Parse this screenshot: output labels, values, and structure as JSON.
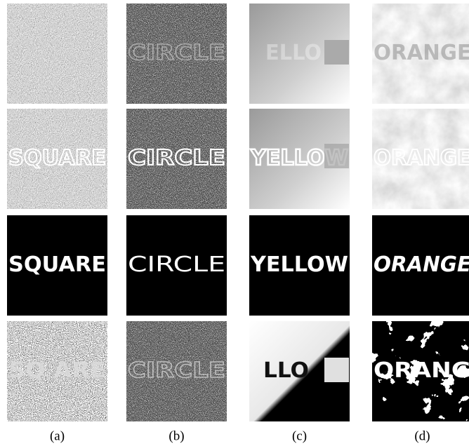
{
  "captions": [
    "(a)",
    "(b)",
    "(c)",
    "(d)"
  ],
  "rows": [
    {
      "cells": [
        null,
        "CIRCLE",
        "ELLO",
        "ORANGE"
      ]
    },
    {
      "cells": [
        "SQUARE",
        "CIRCLE",
        "YELLOW",
        "ORANGE"
      ]
    },
    {
      "cells": [
        "SQUARE",
        "CIRCLE",
        "YELLOW",
        "ORANGE"
      ]
    },
    {
      "cells": [
        "SQ ARE",
        "CIRCLE",
        "LLO",
        "ORANG"
      ]
    }
  ]
}
